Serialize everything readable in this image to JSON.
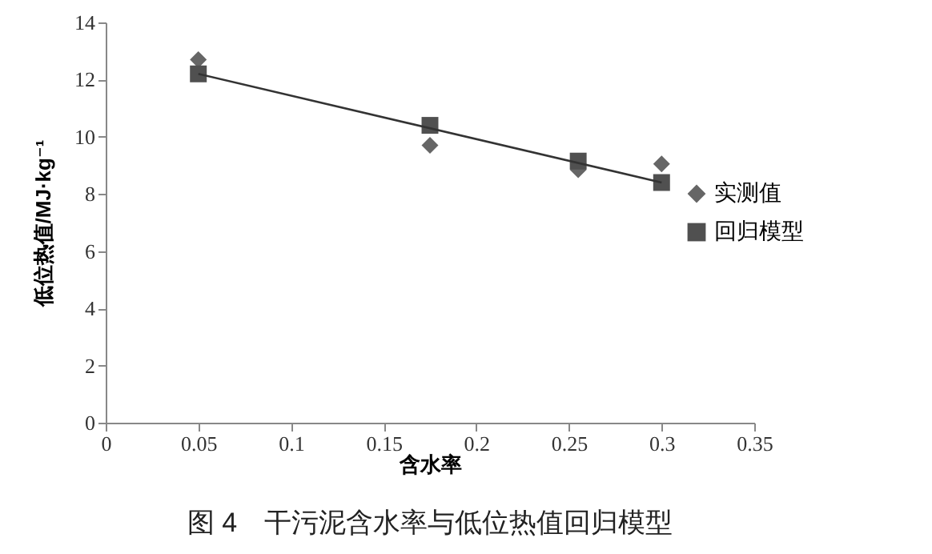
{
  "chart_data": {
    "type": "scatter",
    "title": "图 4　干污泥含水率与低位热值回归模型",
    "xlabel": "含水率",
    "ylabel": "低位热值/MJ·kg⁻¹",
    "xlim": [
      0,
      0.35
    ],
    "xticks": [
      0,
      0.05,
      0.1,
      0.15,
      0.2,
      0.25,
      0.3,
      0.35
    ],
    "ylim": [
      0,
      14
    ],
    "yticks": [
      0,
      2,
      4,
      6,
      8,
      10,
      12,
      14
    ],
    "grid": false,
    "legend": "right",
    "series": [
      {
        "name": "实测值",
        "type": "scatter",
        "marker": "diamond",
        "color": "#666666",
        "x": [
          0.05,
          0.175,
          0.255,
          0.3
        ],
        "values": [
          12.7,
          9.7,
          8.85,
          9.05
        ]
      },
      {
        "name": "回归模型",
        "type": "scatter",
        "marker": "square",
        "color": "#505050",
        "x": [
          0.05,
          0.175,
          0.255,
          0.3
        ],
        "values": [
          12.2,
          10.4,
          9.15,
          8.4
        ]
      },
      {
        "type": "line",
        "color": "#333333",
        "x": [
          0.05,
          0.3
        ],
        "values": [
          12.2,
          8.4
        ]
      }
    ]
  }
}
